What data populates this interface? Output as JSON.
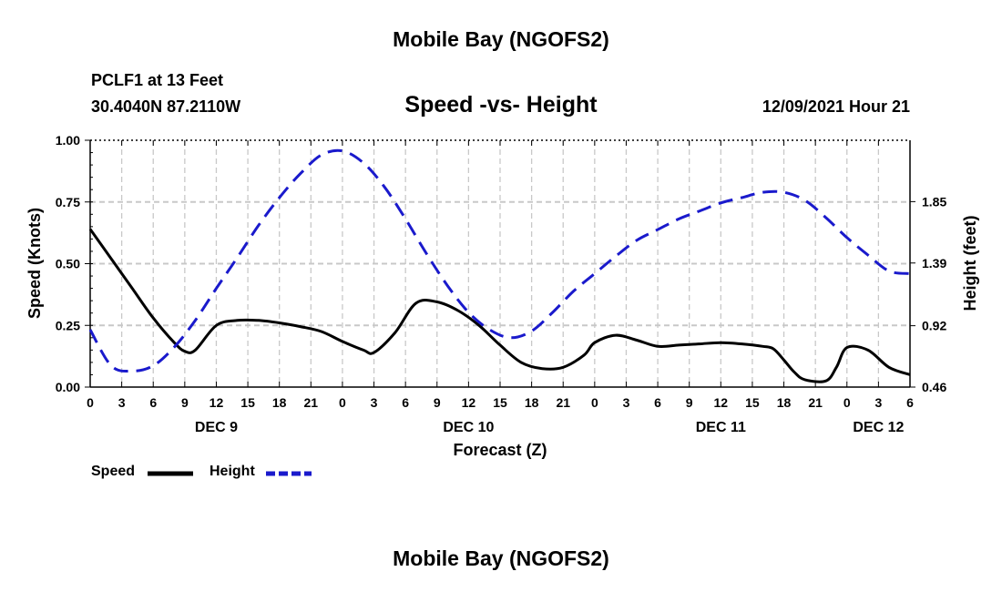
{
  "header": {
    "title": "Mobile Bay (NGOFS2)",
    "station": "PCLF1 at 13 Feet",
    "coords": "30.4040N  87.2110W",
    "chart_title": "Speed -vs- Height",
    "date": "12/09/2021 Hour 21"
  },
  "footer": {
    "title": "Mobile Bay (NGOFS2)"
  },
  "legend": {
    "speed_label": "Speed",
    "height_label": "Height",
    "speed_color": "#000000",
    "height_color": "#1a1acc"
  },
  "chart_data": {
    "type": "line",
    "title": "Speed -vs- Height",
    "xlabel": "Forecast (Z)",
    "ylabel_left": "Speed (Knots)",
    "ylabel_right": "Height (feet)",
    "x_range_hours": [
      0,
      78
    ],
    "x_tick_labels": [
      "0",
      "3",
      "6",
      "9",
      "12",
      "15",
      "18",
      "21",
      "0",
      "3",
      "6",
      "9",
      "12",
      "15",
      "18",
      "21",
      "0",
      "3",
      "6",
      "9",
      "12",
      "15",
      "18",
      "21",
      "0",
      "3",
      "6"
    ],
    "day_labels": [
      {
        "label": "DEC 9",
        "hour": 12
      },
      {
        "label": "DEC 10",
        "hour": 36
      },
      {
        "label": "DEC 11",
        "hour": 60
      },
      {
        "label": "DEC 12",
        "hour": 75
      }
    ],
    "y_left": {
      "range": [
        0,
        1
      ],
      "ticks": [
        "0.00",
        "0.25",
        "0.50",
        "0.75",
        "1.00"
      ]
    },
    "y_right": {
      "range": [
        0.46,
        2.31
      ],
      "ticks": [
        "0.46",
        "0.92",
        "1.39",
        "1.85"
      ]
    },
    "grid": true,
    "series": [
      {
        "name": "Speed",
        "axis": "left",
        "style": "solid",
        "color": "#000000",
        "x": [
          0,
          2,
          4,
          6,
          8,
          9,
          10,
          12,
          14,
          16,
          18,
          20,
          22,
          24,
          26,
          27,
          29,
          31,
          33,
          35,
          37,
          39,
          41,
          43,
          45,
          47,
          48,
          50,
          52,
          54,
          56,
          58,
          60,
          62,
          64,
          65,
          66,
          67,
          68,
          70,
          71,
          72,
          74,
          76,
          78
        ],
        "y": [
          0.64,
          0.52,
          0.4,
          0.28,
          0.18,
          0.145,
          0.15,
          0.25,
          0.27,
          0.27,
          0.26,
          0.245,
          0.225,
          0.185,
          0.15,
          0.14,
          0.22,
          0.34,
          0.345,
          0.31,
          0.25,
          0.17,
          0.1,
          0.075,
          0.08,
          0.13,
          0.18,
          0.21,
          0.19,
          0.165,
          0.17,
          0.175,
          0.18,
          0.175,
          0.165,
          0.155,
          0.11,
          0.06,
          0.03,
          0.025,
          0.08,
          0.16,
          0.15,
          0.08,
          0.05
        ]
      },
      {
        "name": "Height",
        "axis": "right",
        "style": "dashed",
        "color": "#1a1acc",
        "x": [
          0,
          2,
          4,
          6,
          8,
          10,
          12,
          14,
          16,
          18,
          20,
          22,
          24,
          26,
          28,
          30,
          32,
          34,
          36,
          38,
          40,
          42,
          44,
          46,
          48,
          50,
          52,
          54,
          56,
          58,
          60,
          62,
          64,
          66,
          68,
          70,
          72,
          74,
          76,
          78
        ],
        "y": [
          0.89,
          0.62,
          0.58,
          0.62,
          0.76,
          0.96,
          1.2,
          1.43,
          1.67,
          1.88,
          2.06,
          2.2,
          2.23,
          2.14,
          1.96,
          1.72,
          1.46,
          1.22,
          1.02,
          0.89,
          0.83,
          0.88,
          1.02,
          1.18,
          1.31,
          1.44,
          1.56,
          1.64,
          1.72,
          1.78,
          1.84,
          1.88,
          1.92,
          1.92,
          1.86,
          1.73,
          1.58,
          1.45,
          1.33,
          1.31
        ]
      }
    ]
  }
}
